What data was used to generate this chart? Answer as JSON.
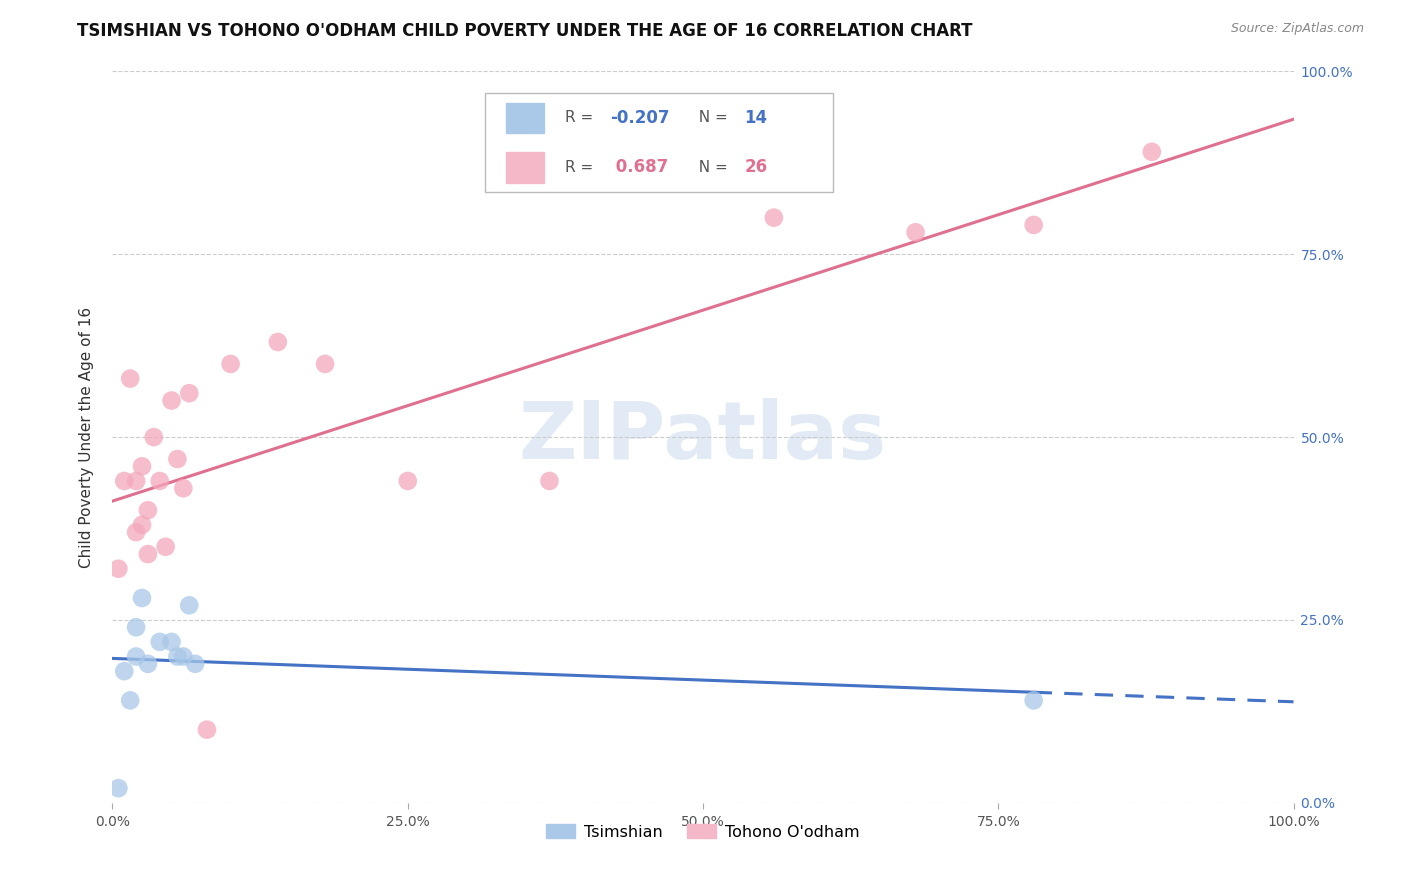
{
  "title": "TSIMSHIAN VS TOHONO O'ODHAM CHILD POVERTY UNDER THE AGE OF 16 CORRELATION CHART",
  "source": "Source: ZipAtlas.com",
  "ylabel": "Child Poverty Under the Age of 16",
  "background_color": "#ffffff",
  "watermark_text": "ZIPatlas",
  "tsimshian": {
    "name": "Tsimshian",
    "color": "#a8c8e8",
    "trend_color": "#4472c4",
    "R": -0.207,
    "N": 14,
    "x": [
      0.5,
      1.0,
      1.5,
      2.0,
      2.0,
      2.5,
      3.0,
      4.0,
      5.0,
      5.5,
      6.0,
      6.5,
      7.0,
      78.0
    ],
    "y": [
      2.0,
      18.0,
      14.0,
      24.0,
      20.0,
      28.0,
      19.0,
      22.0,
      22.0,
      20.0,
      20.0,
      27.0,
      19.0,
      14.0
    ]
  },
  "tohono": {
    "name": "Tohono O'odham",
    "color": "#f4a8bc",
    "trend_color": "#e07090",
    "R": 0.687,
    "N": 26,
    "x": [
      0.5,
      1.0,
      1.5,
      2.0,
      2.0,
      2.5,
      2.5,
      3.0,
      3.0,
      3.5,
      4.0,
      4.5,
      5.0,
      5.5,
      6.0,
      6.5,
      8.0,
      10.0,
      14.0,
      18.0,
      25.0,
      37.0,
      56.0,
      68.0,
      78.0,
      88.0
    ],
    "y": [
      32.0,
      44.0,
      58.0,
      44.0,
      37.0,
      46.0,
      38.0,
      34.0,
      40.0,
      50.0,
      44.0,
      35.0,
      55.0,
      47.0,
      43.0,
      56.0,
      10.0,
      60.0,
      63.0,
      60.0,
      44.0,
      44.0,
      80.0,
      78.0,
      79.0,
      89.0
    ]
  },
  "xlim": [
    0,
    100
  ],
  "ylim": [
    0,
    100
  ],
  "xticks": [
    0,
    25,
    50,
    75,
    100
  ],
  "xtick_labels": [
    "0.0%",
    "25.0%",
    "50.0%",
    "75.0%",
    "100.0%"
  ],
  "yticks": [
    0,
    25,
    50,
    75,
    100
  ],
  "ytick_labels_right": [
    "0.0%",
    "25.0%",
    "50.0%",
    "75.0%",
    "100.0%"
  ],
  "grid_color": "#cccccc",
  "title_fontsize": 12,
  "axis_label_fontsize": 11,
  "tick_fontsize": 10,
  "right_tick_color": "#4472c4"
}
